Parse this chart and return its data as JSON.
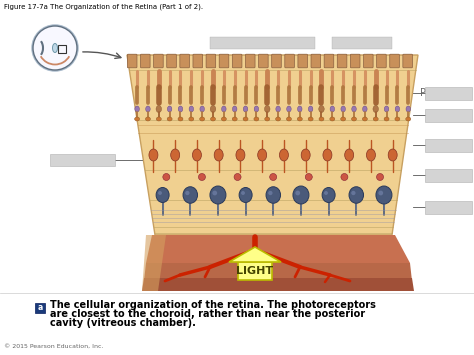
{
  "title": "Figure 17-7a The Organization of the Retina (Part 1 of 2).",
  "caption_line1": "The cellular organization of the retina. The photoreceptors",
  "caption_line2": "are closest to the choroid, rather than near the posterior",
  "caption_line3": "cavity (vitreous chamber).",
  "copyright": "© 2015 Pearson Education, Inc.",
  "light_label": "LIGHT",
  "label_letter": "a",
  "bg_color": "#ffffff",
  "title_fontsize": 5.0,
  "caption_fontsize": 7.0,
  "copyright_fontsize": 4.5,
  "retina_fill": "#f0d090",
  "retina_edge": "#c8a060",
  "choroid_fill": "#c87050",
  "choroid_fill2": "#b86848",
  "choroid_fill3": "#a05038",
  "vessel_color": "#cc2200",
  "rod_color1": "#d4956a",
  "rod_color2": "#b07840",
  "nucleus_color": "#9060a0",
  "synapse_color": "#cc6633",
  "bipolar_color": "#cc6633",
  "amacrine_color": "#cc5544",
  "ganglion_color": "#4a5a7a",
  "arrow_fill": "#ffff88",
  "arrow_edge": "#bbbb00",
  "label_box_fill": "#d0d0d0",
  "label_box_edge": "#aaaaaa",
  "icon_fill": "#1a3a7a",
  "eye_edge": "#607080",
  "p_color": "#666666"
}
